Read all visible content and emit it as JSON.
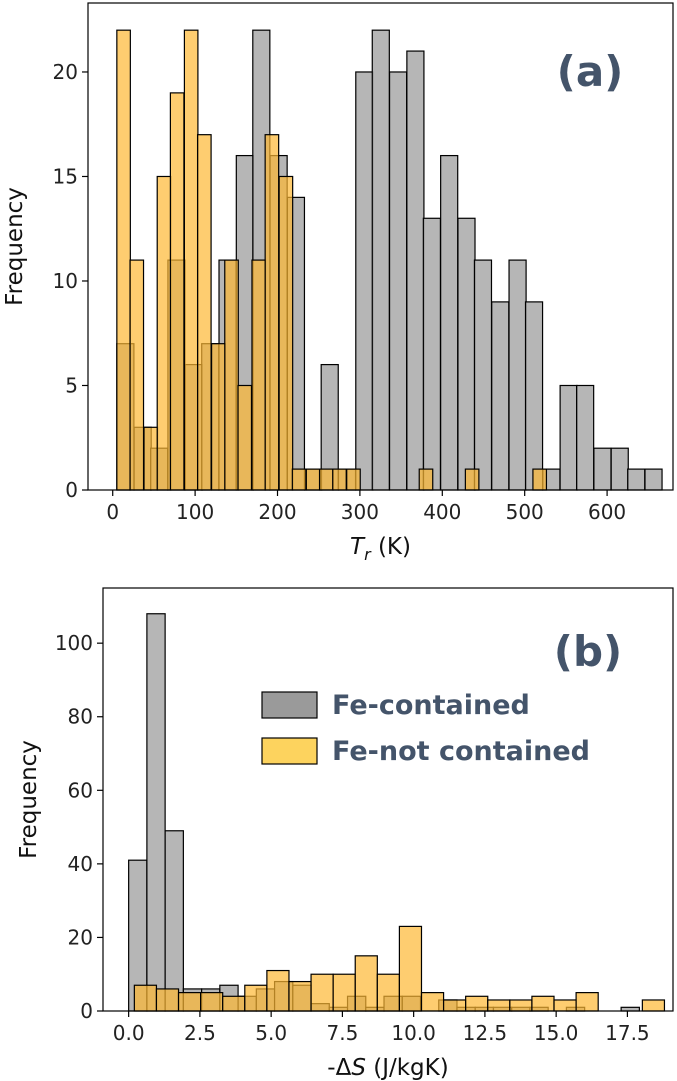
{
  "chart_data": [
    {
      "type": "bar",
      "panel_label": "(a)",
      "ylabel": "Frequency",
      "xlabel_symbol": "T",
      "xlabel_subscript": "r",
      "xlabel_unit": " (K)",
      "xlim": [
        -30,
        680
      ],
      "ylim": [
        0,
        23.3
      ],
      "xticks": [
        0,
        100,
        200,
        300,
        400,
        500,
        600
      ],
      "yticks": [
        0,
        5,
        10,
        15,
        20
      ],
      "legend": "none",
      "grid": false,
      "series": [
        {
          "color": "#a9a9a9",
          "opacity": 0.85,
          "bin_width": 20.7,
          "bins": [
            [
              5,
              7
            ],
            [
              26,
              3
            ],
            [
              46,
              2
            ],
            [
              67,
              11
            ],
            [
              88,
              6
            ],
            [
              108,
              7
            ],
            [
              129,
              11
            ],
            [
              150,
              16
            ],
            [
              170,
              22
            ],
            [
              191,
              16
            ],
            [
              212,
              14
            ],
            [
              233,
              1
            ],
            [
              253,
              6
            ],
            [
              274,
              1
            ],
            [
              295,
              20
            ],
            [
              315,
              22
            ],
            [
              336,
              20
            ],
            [
              357,
              21
            ],
            [
              377,
              13
            ],
            [
              398,
              16
            ],
            [
              419,
              13
            ],
            [
              439,
              11
            ],
            [
              460,
              9
            ],
            [
              481,
              11
            ],
            [
              501,
              9
            ],
            [
              522,
              1
            ],
            [
              543,
              5
            ],
            [
              563,
              5
            ],
            [
              584,
              2
            ],
            [
              605,
              2
            ],
            [
              625,
              1
            ],
            [
              646,
              1
            ]
          ]
        },
        {
          "color": "#fdb833",
          "opacity": 0.7,
          "bin_width": 16.4,
          "bins": [
            [
              5,
              22
            ],
            [
              21,
              11
            ],
            [
              38,
              3
            ],
            [
              54,
              15
            ],
            [
              70,
              19
            ],
            [
              87,
              22
            ],
            [
              103,
              17
            ],
            [
              120,
              7
            ],
            [
              136,
              11
            ],
            [
              152,
              5
            ],
            [
              169,
              11
            ],
            [
              185,
              17
            ],
            [
              202,
              15
            ],
            [
              218,
              1
            ],
            [
              235,
              1
            ],
            [
              251,
              1
            ],
            [
              267,
              1
            ],
            [
              284,
              1
            ],
            [
              372,
              1
            ],
            [
              428,
              1
            ],
            [
              510,
              1
            ]
          ]
        }
      ]
    },
    {
      "type": "bar",
      "panel_label": "(b)",
      "ylabel": "Frequency",
      "xlabel_text": "-Δ",
      "xlabel_symbol": "S",
      "xlabel_unit": " (J/kgK)",
      "xlim": [
        -0.9,
        19.1
      ],
      "ylim": [
        0,
        115
      ],
      "xticks": [
        0.0,
        2.5,
        5.0,
        7.5,
        10.0,
        12.5,
        15.0,
        17.5
      ],
      "xtick_labels": [
        "0.0",
        "2.5",
        "5.0",
        "7.5",
        "10.0",
        "12.5",
        "15.0",
        "17.5"
      ],
      "yticks": [
        0,
        20,
        40,
        60,
        80,
        100
      ],
      "legend": "center-right",
      "grid": false,
      "series": [
        {
          "name": "Fe-contained",
          "color": "#a9a9a9",
          "opacity": 0.85,
          "bin_width": 0.64,
          "bins": [
            [
              0.0,
              41
            ],
            [
              0.64,
              108
            ],
            [
              1.28,
              49
            ],
            [
              1.92,
              6
            ],
            [
              2.56,
              6
            ],
            [
              3.2,
              7
            ],
            [
              3.84,
              4
            ],
            [
              4.48,
              6
            ],
            [
              5.12,
              8
            ],
            [
              5.76,
              7
            ],
            [
              6.4,
              2
            ],
            [
              7.04,
              1
            ],
            [
              7.68,
              4
            ],
            [
              8.32,
              1
            ],
            [
              8.96,
              4
            ],
            [
              9.6,
              4
            ],
            [
              10.24,
              0
            ],
            [
              10.88,
              3
            ],
            [
              11.52,
              1
            ],
            [
              12.16,
              1
            ],
            [
              12.8,
              1
            ],
            [
              13.44,
              1
            ],
            [
              14.08,
              1
            ],
            [
              14.72,
              0
            ],
            [
              15.36,
              1
            ],
            [
              16.0,
              0
            ],
            [
              16.64,
              0
            ],
            [
              17.28,
              1
            ]
          ]
        },
        {
          "name": "Fe-not contained",
          "color": "#fdb833",
          "opacity": 0.7,
          "bin_width": 0.775,
          "bins": [
            [
              0.2,
              7
            ],
            [
              0.975,
              6
            ],
            [
              1.75,
              5
            ],
            [
              2.525,
              5
            ],
            [
              3.3,
              4
            ],
            [
              4.075,
              7
            ],
            [
              4.85,
              11
            ],
            [
              5.625,
              8
            ],
            [
              6.4,
              10
            ],
            [
              7.175,
              10
            ],
            [
              7.95,
              15
            ],
            [
              8.725,
              10
            ],
            [
              9.5,
              23
            ],
            [
              10.275,
              5
            ],
            [
              11.05,
              3
            ],
            [
              11.825,
              4
            ],
            [
              12.6,
              3
            ],
            [
              13.375,
              3
            ],
            [
              14.15,
              4
            ],
            [
              14.925,
              3
            ],
            [
              15.7,
              5
            ],
            [
              16.475,
              0
            ],
            [
              17.25,
              0
            ],
            [
              18.025,
              3
            ]
          ]
        }
      ]
    }
  ]
}
